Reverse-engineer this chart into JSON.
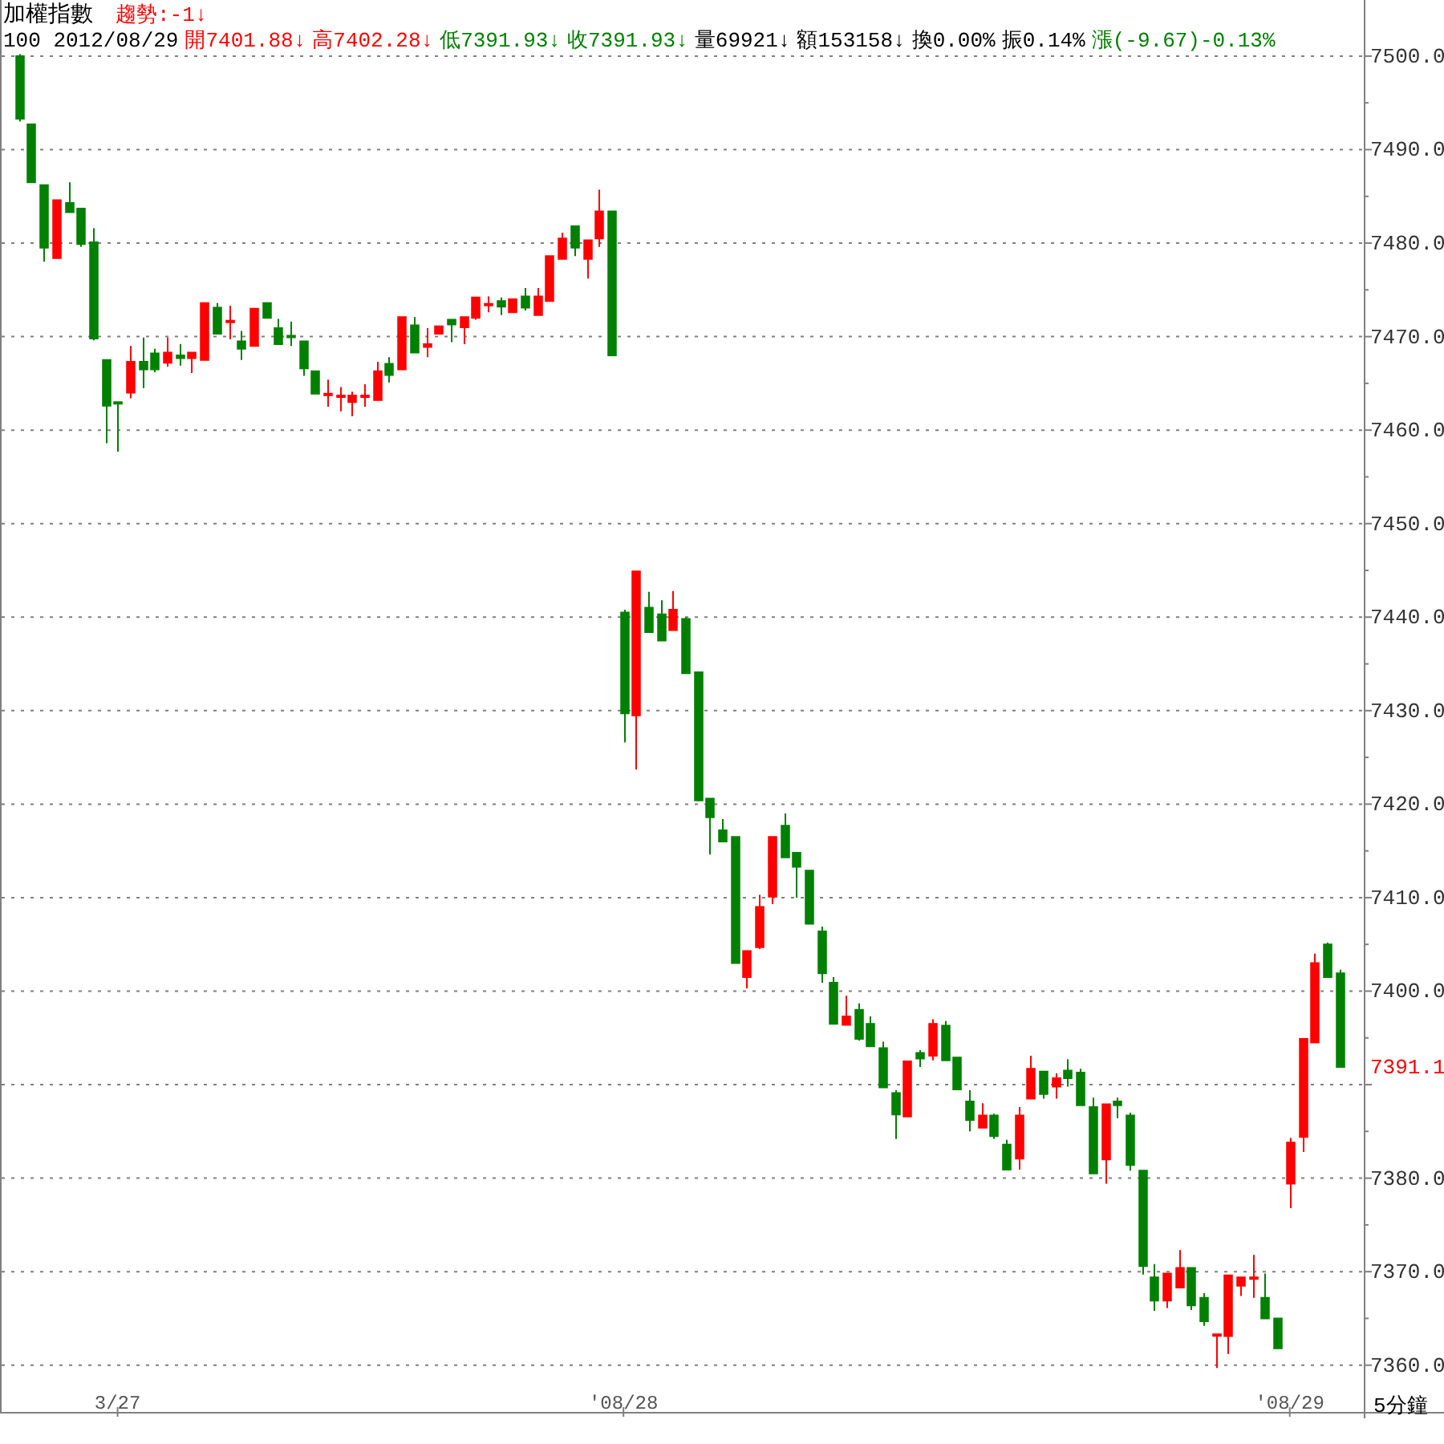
{
  "chart_data": {
    "type": "candlestick",
    "title": "加權指數",
    "annotations": [
      "趨勢:-1↓",
      "100 2012/08/29",
      "開7401.88↓",
      "高7402.28↓",
      "低7391.93↓",
      "收7391.93↓",
      "量69921↓",
      "額153158↓",
      "換0.00%",
      "振0.14%",
      "漲(-9.67)-0.13%",
      "5分鐘",
      "7391.1"
    ],
    "categories": [
      null,
      null,
      null,
      null,
      null,
      null,
      null,
      null,
      "3/27",
      null,
      null,
      null,
      null,
      null,
      null,
      null,
      null,
      null,
      null,
      null,
      null,
      null,
      null,
      null,
      null,
      null,
      null,
      null,
      null,
      null,
      null,
      null,
      null,
      null,
      null,
      null,
      null,
      null,
      null,
      null,
      null,
      null,
      null,
      null,
      null,
      null,
      null,
      null,
      null,
      "'08/28",
      null,
      null,
      null,
      null,
      null,
      null,
      null,
      null,
      null,
      null,
      null,
      null,
      null,
      null,
      null,
      null,
      null,
      null,
      null,
      null,
      null,
      null,
      null,
      null,
      null,
      null,
      null,
      null,
      null,
      null,
      null,
      null,
      null,
      null,
      null,
      null,
      null,
      null,
      null,
      null,
      null,
      null,
      null,
      null,
      null,
      null,
      null,
      null,
      null,
      null,
      null,
      null,
      null,
      "'08/29",
      null,
      null,
      null,
      null
    ],
    "ohlc": [
      [
        7500.0,
        7500.2,
        7493.0,
        7493.3
      ],
      [
        7492.7,
        7492.7,
        7486.5,
        7486.5
      ],
      [
        7486.2,
        7486.2,
        7478.0,
        7479.5
      ],
      [
        7478.4,
        7484.6,
        7478.4,
        7484.6
      ],
      [
        7484.3,
        7486.5,
        7483.3,
        7483.3
      ],
      [
        7483.7,
        7483.7,
        7479.6,
        7479.9
      ],
      [
        7480.1,
        7481.6,
        7469.6,
        7469.8
      ],
      [
        7467.5,
        7467.5,
        7458.6,
        7462.6
      ],
      [
        7463.0,
        7463.0,
        7457.7,
        7462.9
      ],
      [
        7464.0,
        7469.0,
        7463.4,
        7467.3
      ],
      [
        7467.3,
        7469.9,
        7464.5,
        7466.5
      ],
      [
        7468.2,
        7468.7,
        7466.2,
        7466.5
      ],
      [
        7467.2,
        7469.9,
        7466.8,
        7468.3
      ],
      [
        7468.0,
        7469.2,
        7466.9,
        7467.7
      ],
      [
        7467.7,
        7468.3,
        7466.1,
        7468.3
      ],
      [
        7467.5,
        7473.6,
        7467.5,
        7473.6
      ],
      [
        7473.1,
        7473.6,
        7470.3,
        7470.3
      ],
      [
        7471.6,
        7473.3,
        7469.7,
        7471.7
      ],
      [
        7469.5,
        7470.6,
        7467.5,
        7468.7
      ],
      [
        7469.0,
        7473.0,
        7469.0,
        7473.0
      ],
      [
        7473.6,
        7473.6,
        7472.0,
        7472.0
      ],
      [
        7470.9,
        7471.9,
        7469.2,
        7469.2
      ],
      [
        7470.1,
        7471.6,
        7469.0,
        7470.0
      ],
      [
        7469.5,
        7469.5,
        7465.8,
        7466.6
      ],
      [
        7466.3,
        7466.3,
        7463.9,
        7463.9
      ],
      [
        7463.8,
        7465.4,
        7462.5,
        7463.9
      ],
      [
        7463.6,
        7464.6,
        7462.0,
        7463.7
      ],
      [
        7463.0,
        7464.1,
        7461.5,
        7463.7
      ],
      [
        7463.6,
        7464.9,
        7462.5,
        7463.7
      ],
      [
        7463.2,
        7467.3,
        7463.2,
        7466.3
      ],
      [
        7467.1,
        7467.8,
        7465.1,
        7465.9
      ],
      [
        7466.5,
        7472.1,
        7466.5,
        7472.1
      ],
      [
        7471.2,
        7472.1,
        7468.3,
        7468.3
      ],
      [
        7468.9,
        7470.9,
        7467.8,
        7469.2
      ],
      [
        7470.3,
        7471.1,
        7470.3,
        7471.1
      ],
      [
        7471.8,
        7471.8,
        7469.4,
        7471.3
      ],
      [
        7471.0,
        7472.1,
        7469.2,
        7472.1
      ],
      [
        7472.0,
        7474.2,
        7471.8,
        7474.2
      ],
      [
        7473.4,
        7474.3,
        7472.6,
        7473.5
      ],
      [
        7473.8,
        7474.2,
        7472.3,
        7473.2
      ],
      [
        7472.6,
        7474.0,
        7472.6,
        7474.0
      ],
      [
        7474.3,
        7475.2,
        7472.8,
        7473.1
      ],
      [
        7472.3,
        7475.2,
        7472.3,
        7474.3
      ],
      [
        7473.8,
        7478.6,
        7473.8,
        7478.6
      ],
      [
        7478.3,
        7481.1,
        7478.3,
        7480.5
      ],
      [
        7481.8,
        7481.8,
        7478.6,
        7479.5
      ],
      [
        7478.3,
        7480.3,
        7476.2,
        7480.3
      ],
      [
        7480.5,
        7485.7,
        7479.6,
        7483.4
      ],
      [
        7483.4,
        7483.4,
        7468.0,
        7468.0
      ],
      [
        7440.5,
        7440.8,
        7426.6,
        7429.7
      ],
      [
        7429.5,
        7444.9,
        7423.7,
        7444.9
      ],
      [
        7441.0,
        7442.7,
        7438.4,
        7438.4
      ],
      [
        7440.3,
        7441.8,
        7437.5,
        7437.5
      ],
      [
        7438.6,
        7442.8,
        7438.6,
        7440.8
      ],
      [
        7439.8,
        7440.0,
        7434.0,
        7434.0
      ],
      [
        7434.1,
        7434.1,
        7420.4,
        7420.4
      ],
      [
        7420.6,
        7420.6,
        7414.6,
        7418.6
      ],
      [
        7417.2,
        7418.4,
        7416.0,
        7416.0
      ],
      [
        7416.5,
        7416.5,
        7403.0,
        7403.0
      ],
      [
        7401.5,
        7404.3,
        7400.3,
        7404.3
      ],
      [
        7404.7,
        7410.3,
        7404.5,
        7409.0
      ],
      [
        7410.1,
        7416.5,
        7409.3,
        7416.5
      ],
      [
        7417.7,
        7419.0,
        7414.3,
        7414.3
      ],
      [
        7414.8,
        7414.8,
        7410.0,
        7413.3
      ],
      [
        7412.9,
        7412.9,
        7407.2,
        7407.2
      ],
      [
        7406.4,
        7406.9,
        7400.9,
        7401.9
      ],
      [
        7400.9,
        7401.5,
        7396.5,
        7396.5
      ],
      [
        7396.4,
        7399.5,
        7396.4,
        7397.3
      ],
      [
        7398.0,
        7398.7,
        7394.7,
        7394.9
      ],
      [
        7396.5,
        7397.3,
        7394.1,
        7394.1
      ],
      [
        7393.9,
        7394.6,
        7389.7,
        7389.7
      ],
      [
        7389.1,
        7389.4,
        7384.2,
        7386.8
      ],
      [
        7386.6,
        7392.5,
        7386.6,
        7392.5
      ],
      [
        7393.4,
        7393.7,
        7391.9,
        7392.8
      ],
      [
        7393.1,
        7397.0,
        7392.6,
        7396.5
      ],
      [
        7396.3,
        7396.8,
        7392.6,
        7392.6
      ],
      [
        7392.9,
        7392.9,
        7389.5,
        7389.5
      ],
      [
        7388.2,
        7389.4,
        7385.0,
        7386.2
      ],
      [
        7385.4,
        7388.0,
        7385.4,
        7386.7
      ],
      [
        7386.7,
        7386.9,
        7384.2,
        7384.5
      ],
      [
        7383.6,
        7384.1,
        7380.9,
        7380.9
      ],
      [
        7382.1,
        7387.6,
        7380.9,
        7386.7
      ],
      [
        7388.5,
        7393.1,
        7388.5,
        7391.7
      ],
      [
        7391.4,
        7391.4,
        7388.5,
        7389.0
      ],
      [
        7389.8,
        7391.2,
        7388.5,
        7390.7
      ],
      [
        7391.5,
        7392.7,
        7389.8,
        7390.7
      ],
      [
        7391.3,
        7391.7,
        7387.8,
        7387.8
      ],
      [
        7387.6,
        7388.6,
        7380.5,
        7380.5
      ],
      [
        7382.0,
        7387.9,
        7379.4,
        7387.9
      ],
      [
        7388.2,
        7388.6,
        7386.4,
        7387.8
      ],
      [
        7386.7,
        7387.0,
        7380.8,
        7381.4
      ],
      [
        7380.8,
        7380.8,
        7369.7,
        7370.6
      ],
      [
        7369.4,
        7370.8,
        7365.8,
        7366.9
      ],
      [
        7366.9,
        7369.8,
        7366.1,
        7369.8
      ],
      [
        7368.3,
        7372.3,
        7368.3,
        7370.4
      ],
      [
        7370.4,
        7370.4,
        7365.9,
        7366.4
      ],
      [
        7367.2,
        7367.7,
        7364.2,
        7364.7
      ],
      [
        7363.2,
        7363.3,
        7359.7,
        7363.3
      ],
      [
        7363.1,
        7369.6,
        7361.2,
        7369.6
      ],
      [
        7368.5,
        7369.4,
        7367.4,
        7369.4
      ],
      [
        7369.3,
        7371.8,
        7367.2,
        7369.4
      ],
      [
        7367.2,
        7369.8,
        7365.0,
        7365.0
      ],
      [
        7365.0,
        7365.0,
        7361.8,
        7361.8
      ],
      [
        7379.4,
        7384.3,
        7376.8,
        7383.8
      ],
      [
        7384.4,
        7394.9,
        7382.8,
        7394.9
      ],
      [
        7394.5,
        7404.0,
        7394.5,
        7403.0
      ],
      [
        7405.0,
        7405.2,
        7401.5,
        7401.5
      ],
      [
        7401.9,
        7402.3,
        7391.9,
        7391.9
      ]
    ],
    "ylim": [
      7355,
      7506
    ],
    "yticks": [
      {
        "value": 7360,
        "label": "7360.0"
      },
      {
        "value": 7365,
        "label": null
      },
      {
        "value": 7370,
        "label": "7370.0"
      },
      {
        "value": 7375,
        "label": null
      },
      {
        "value": 7380,
        "label": "7380.0"
      },
      {
        "value": 7385,
        "label": null
      },
      {
        "value": 7390,
        "label": null
      },
      {
        "value": 7395,
        "label": null
      },
      {
        "value": 7400,
        "label": "7400.0"
      },
      {
        "value": 7405,
        "label": null
      },
      {
        "value": 7410,
        "label": "7410.0"
      },
      {
        "value": 7415,
        "label": null
      },
      {
        "value": 7420,
        "label": "7420.0"
      },
      {
        "value": 7425,
        "label": null
      },
      {
        "value": 7430,
        "label": "7430.0"
      },
      {
        "value": 7435,
        "label": null
      },
      {
        "value": 7440,
        "label": "7440.0"
      },
      {
        "value": 7445,
        "label": null
      },
      {
        "value": 7450,
        "label": "7450.0"
      },
      {
        "value": 7455,
        "label": null
      },
      {
        "value": 7460,
        "label": "7460.0"
      },
      {
        "value": 7465,
        "label": null
      },
      {
        "value": 7470,
        "label": "7470.0"
      },
      {
        "value": 7475,
        "label": null
      },
      {
        "value": 7480,
        "label": "7480.0"
      },
      {
        "value": 7485,
        "label": null
      },
      {
        "value": 7490,
        "label": "7490.0"
      },
      {
        "value": 7495,
        "label": null
      },
      {
        "value": 7500,
        "label": "7500.0"
      }
    ],
    "grid": "y"
  }
}
